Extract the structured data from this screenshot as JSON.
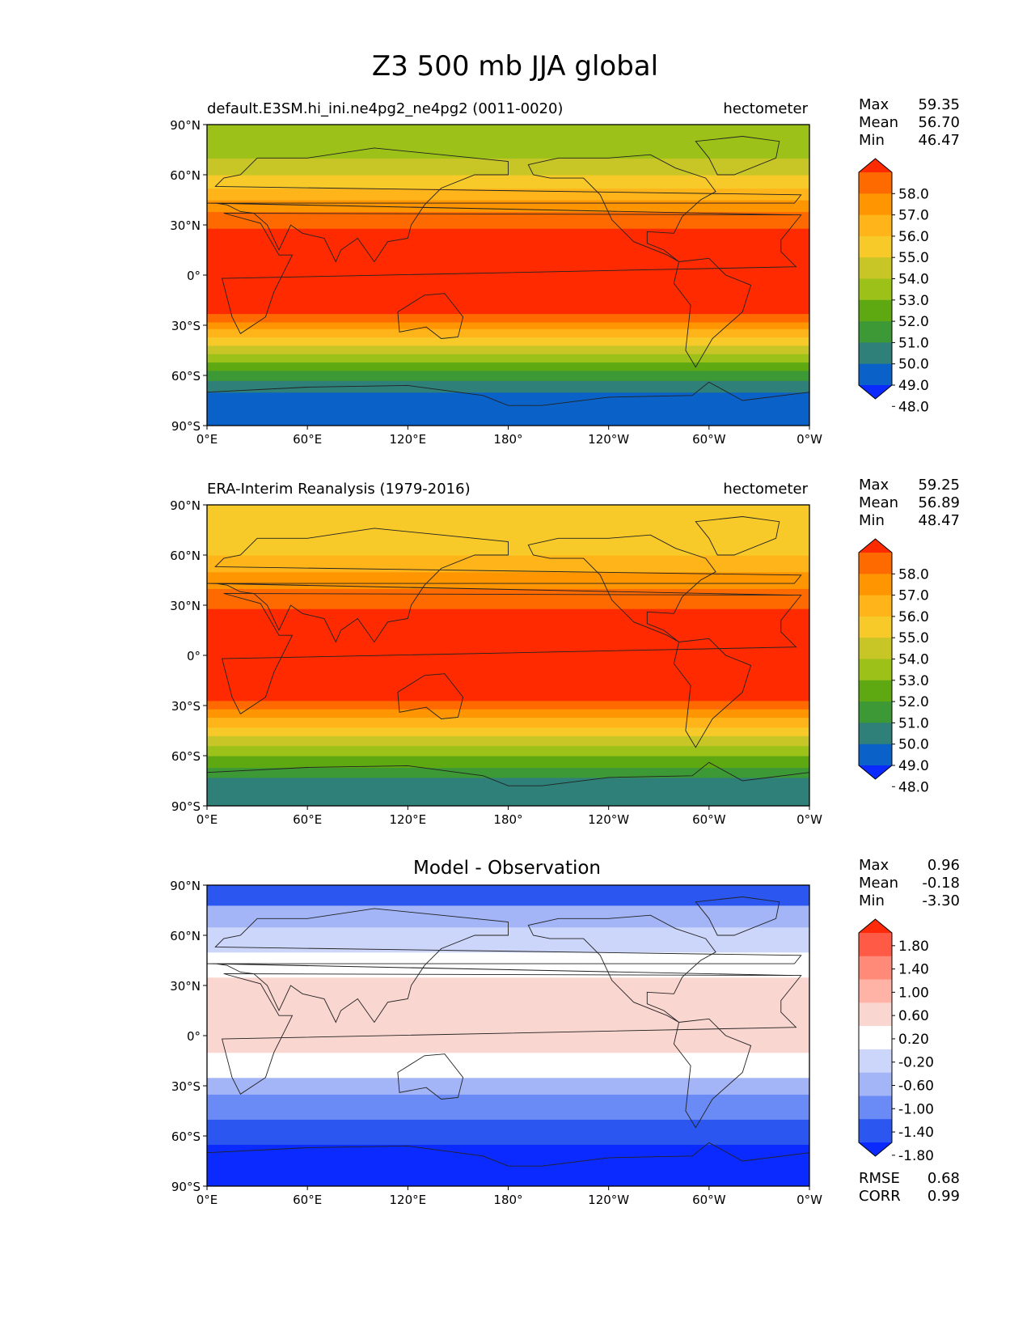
{
  "figure": {
    "title": "Z3 500 mb JJA global"
  },
  "axis": {
    "lat_ticks": [
      "90°N",
      "60°N",
      "30°N",
      "0°",
      "30°S",
      "60°S",
      "90°S"
    ],
    "lon_ticks": [
      "0°E",
      "60°E",
      "120°E",
      "180°",
      "120°W",
      "60°W",
      "0°W"
    ]
  },
  "stats_labels": {
    "max": "Max",
    "mean": "Mean",
    "min": "Min",
    "rmse": "RMSE",
    "corr": "CORR"
  },
  "panels": [
    {
      "title_left": "default.E3SM.hi_ini.ne4pg2_ne4pg2 (0011-0020)",
      "title_center": "",
      "units": "hectometer",
      "stats": {
        "max": "59.35",
        "mean": "56.70",
        "min": "46.47"
      }
    },
    {
      "title_left": "ERA-Interim Reanalysis (1979-2016)",
      "title_center": "",
      "units": "hectometer",
      "stats": {
        "max": "59.25",
        "mean": "56.89",
        "min": "48.47"
      }
    },
    {
      "title_left": "",
      "title_center": "Model - Observation",
      "units": "",
      "stats": {
        "max": "0.96",
        "mean": "-0.18",
        "min": "-3.30"
      },
      "metrics": {
        "rmse": "0.68",
        "corr": "0.99"
      }
    }
  ],
  "colorbars": {
    "field": {
      "labels": [
        "58.0",
        "57.0",
        "56.0",
        "55.0",
        "54.0",
        "53.0",
        "52.0",
        "51.0",
        "50.0",
        "49.0",
        "48.0"
      ],
      "colors": [
        "#ff2a00",
        "#ff6a00",
        "#ff9500",
        "#ffb41a",
        "#f7ca29",
        "#c8c626",
        "#9cc21a",
        "#5ea912",
        "#3d9935",
        "#2e8079",
        "#0a62c8",
        "#0a2aff"
      ]
    },
    "diff": {
      "labels": [
        "1.80",
        "1.40",
        "1.00",
        "0.60",
        "0.20",
        "-0.20",
        "-0.60",
        "-1.00",
        "-1.40",
        "-1.80"
      ],
      "colors": [
        "#ff2a0a",
        "#ff5a46",
        "#ff8a78",
        "#ffb3a6",
        "#fad6d0",
        "#ffffff",
        "#ccd6fa",
        "#a3b5f7",
        "#6a8af5",
        "#2c56f0",
        "#0a2aff"
      ]
    }
  },
  "chart_data": [
    {
      "type": "heatmap",
      "title": "default.E3SM.hi_ini.ne4pg2_ne4pg2 (0011-0020)",
      "field": "Z3 500 mb JJA",
      "units": "hectometer",
      "xlim": [
        0,
        360
      ],
      "ylim": [
        -90,
        90
      ],
      "latitude_bands": [
        {
          "lat": [
            -90,
            -70
          ],
          "value": 48.0
        },
        {
          "lat": [
            -70,
            -63
          ],
          "value": 49.5
        },
        {
          "lat": [
            -63,
            -57
          ],
          "value": 50.5
        },
        {
          "lat": [
            -57,
            -52
          ],
          "value": 51.5
        },
        {
          "lat": [
            -52,
            -47
          ],
          "value": 52.5
        },
        {
          "lat": [
            -47,
            -42
          ],
          "value": 53.5
        },
        {
          "lat": [
            -42,
            -37
          ],
          "value": 54.5
        },
        {
          "lat": [
            -37,
            -32
          ],
          "value": 55.5
        },
        {
          "lat": [
            -32,
            -28
          ],
          "value": 56.5
        },
        {
          "lat": [
            -28,
            -23
          ],
          "value": 57.5
        },
        {
          "lat": [
            -23,
            28
          ],
          "value": 58.5
        },
        {
          "lat": [
            28,
            38
          ],
          "value": 57.5
        },
        {
          "lat": [
            38,
            45
          ],
          "value": 56.5
        },
        {
          "lat": [
            45,
            52
          ],
          "value": 55.5
        },
        {
          "lat": [
            52,
            60
          ],
          "value": 54.5
        },
        {
          "lat": [
            60,
            70
          ],
          "value": 53.5
        },
        {
          "lat": [
            70,
            90
          ],
          "value": 52.5
        }
      ],
      "stats": {
        "max": 59.35,
        "mean": 56.7,
        "min": 46.47
      }
    },
    {
      "type": "heatmap",
      "title": "ERA-Interim Reanalysis (1979-2016)",
      "field": "Z3 500 mb JJA",
      "units": "hectometer",
      "xlim": [
        0,
        360
      ],
      "ylim": [
        -90,
        90
      ],
      "latitude_bands": [
        {
          "lat": [
            -90,
            -73
          ],
          "value": 49.5
        },
        {
          "lat": [
            -73,
            -67
          ],
          "value": 50.5
        },
        {
          "lat": [
            -67,
            -60
          ],
          "value": 51.5
        },
        {
          "lat": [
            -60,
            -54
          ],
          "value": 52.5
        },
        {
          "lat": [
            -54,
            -48
          ],
          "value": 53.5
        },
        {
          "lat": [
            -48,
            -43
          ],
          "value": 54.5
        },
        {
          "lat": [
            -43,
            -37
          ],
          "value": 55.5
        },
        {
          "lat": [
            -37,
            -32
          ],
          "value": 56.5
        },
        {
          "lat": [
            -32,
            -27
          ],
          "value": 57.5
        },
        {
          "lat": [
            -27,
            28
          ],
          "value": 58.5
        },
        {
          "lat": [
            28,
            40
          ],
          "value": 57.5
        },
        {
          "lat": [
            40,
            50
          ],
          "value": 56.5
        },
        {
          "lat": [
            50,
            60
          ],
          "value": 55.5
        },
        {
          "lat": [
            60,
            90
          ],
          "value": 54.5
        }
      ],
      "stats": {
        "max": 59.25,
        "mean": 56.89,
        "min": 48.47
      }
    },
    {
      "type": "heatmap",
      "title": "Model - Observation",
      "field": "Z3 500 mb JJA difference",
      "units": "hectometer",
      "xlim": [
        0,
        360
      ],
      "ylim": [
        -90,
        90
      ],
      "latitude_bands": [
        {
          "lat": [
            -90,
            -65
          ],
          "value": -2.0
        },
        {
          "lat": [
            -65,
            -50
          ],
          "value": -1.6
        },
        {
          "lat": [
            -50,
            -35
          ],
          "value": -1.2
        },
        {
          "lat": [
            -35,
            -25
          ],
          "value": -0.8
        },
        {
          "lat": [
            -25,
            -10
          ],
          "value": 0.0
        },
        {
          "lat": [
            -10,
            35
          ],
          "value": 0.4
        },
        {
          "lat": [
            35,
            50
          ],
          "value": 0.0
        },
        {
          "lat": [
            50,
            65
          ],
          "value": -0.4
        },
        {
          "lat": [
            65,
            78
          ],
          "value": -0.8
        },
        {
          "lat": [
            78,
            90
          ],
          "value": -1.6
        }
      ],
      "stats": {
        "max": 0.96,
        "mean": -0.18,
        "min": -3.3
      },
      "rmse": 0.68,
      "corr": 0.99
    }
  ]
}
